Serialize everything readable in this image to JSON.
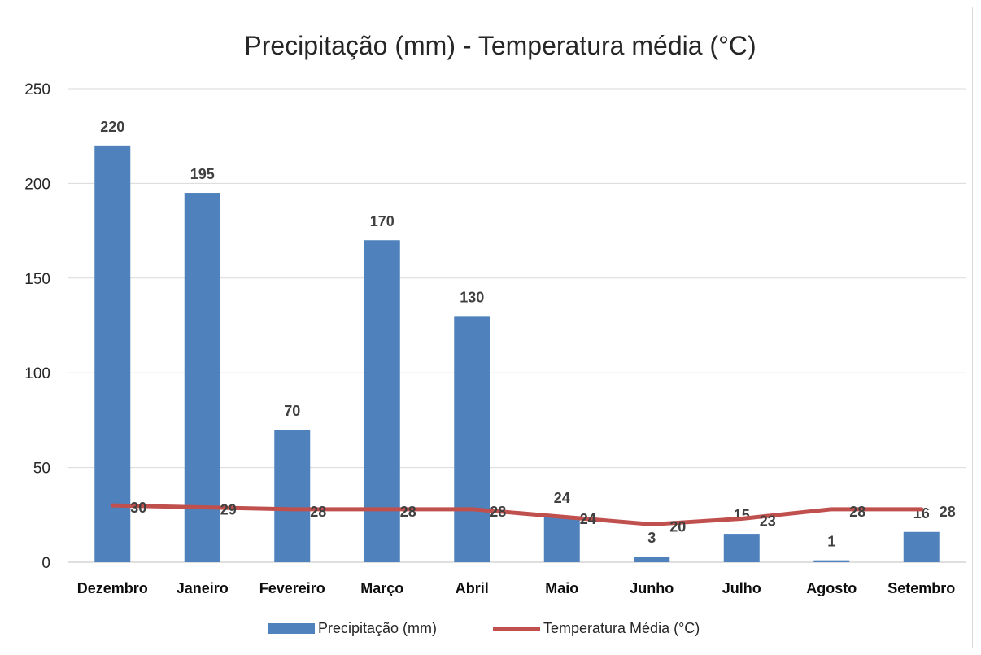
{
  "chart_data": {
    "type": "bar",
    "title": "Precipitação (mm) - Temperatura média (°C)",
    "categories": [
      "Dezembro",
      "Janeiro",
      "Fevereiro",
      "Março",
      "Abril",
      "Maio",
      "Junho",
      "Julho",
      "Agosto",
      "Setembro"
    ],
    "series": [
      {
        "name": "Precipitação (mm)",
        "type": "bar",
        "color": "#4f81bd",
        "values": [
          220,
          195,
          70,
          170,
          130,
          24,
          3,
          15,
          1,
          16
        ]
      },
      {
        "name": "Temperatura Média (°C)",
        "type": "line",
        "color": "#c0504d",
        "values": [
          30,
          29,
          28,
          28,
          28,
          24,
          20,
          23,
          28,
          28
        ]
      }
    ],
    "ylim": [
      0,
      250
    ],
    "yticks": [
      0,
      50,
      100,
      150,
      200,
      250
    ],
    "grid": true,
    "legend": "bottom"
  }
}
